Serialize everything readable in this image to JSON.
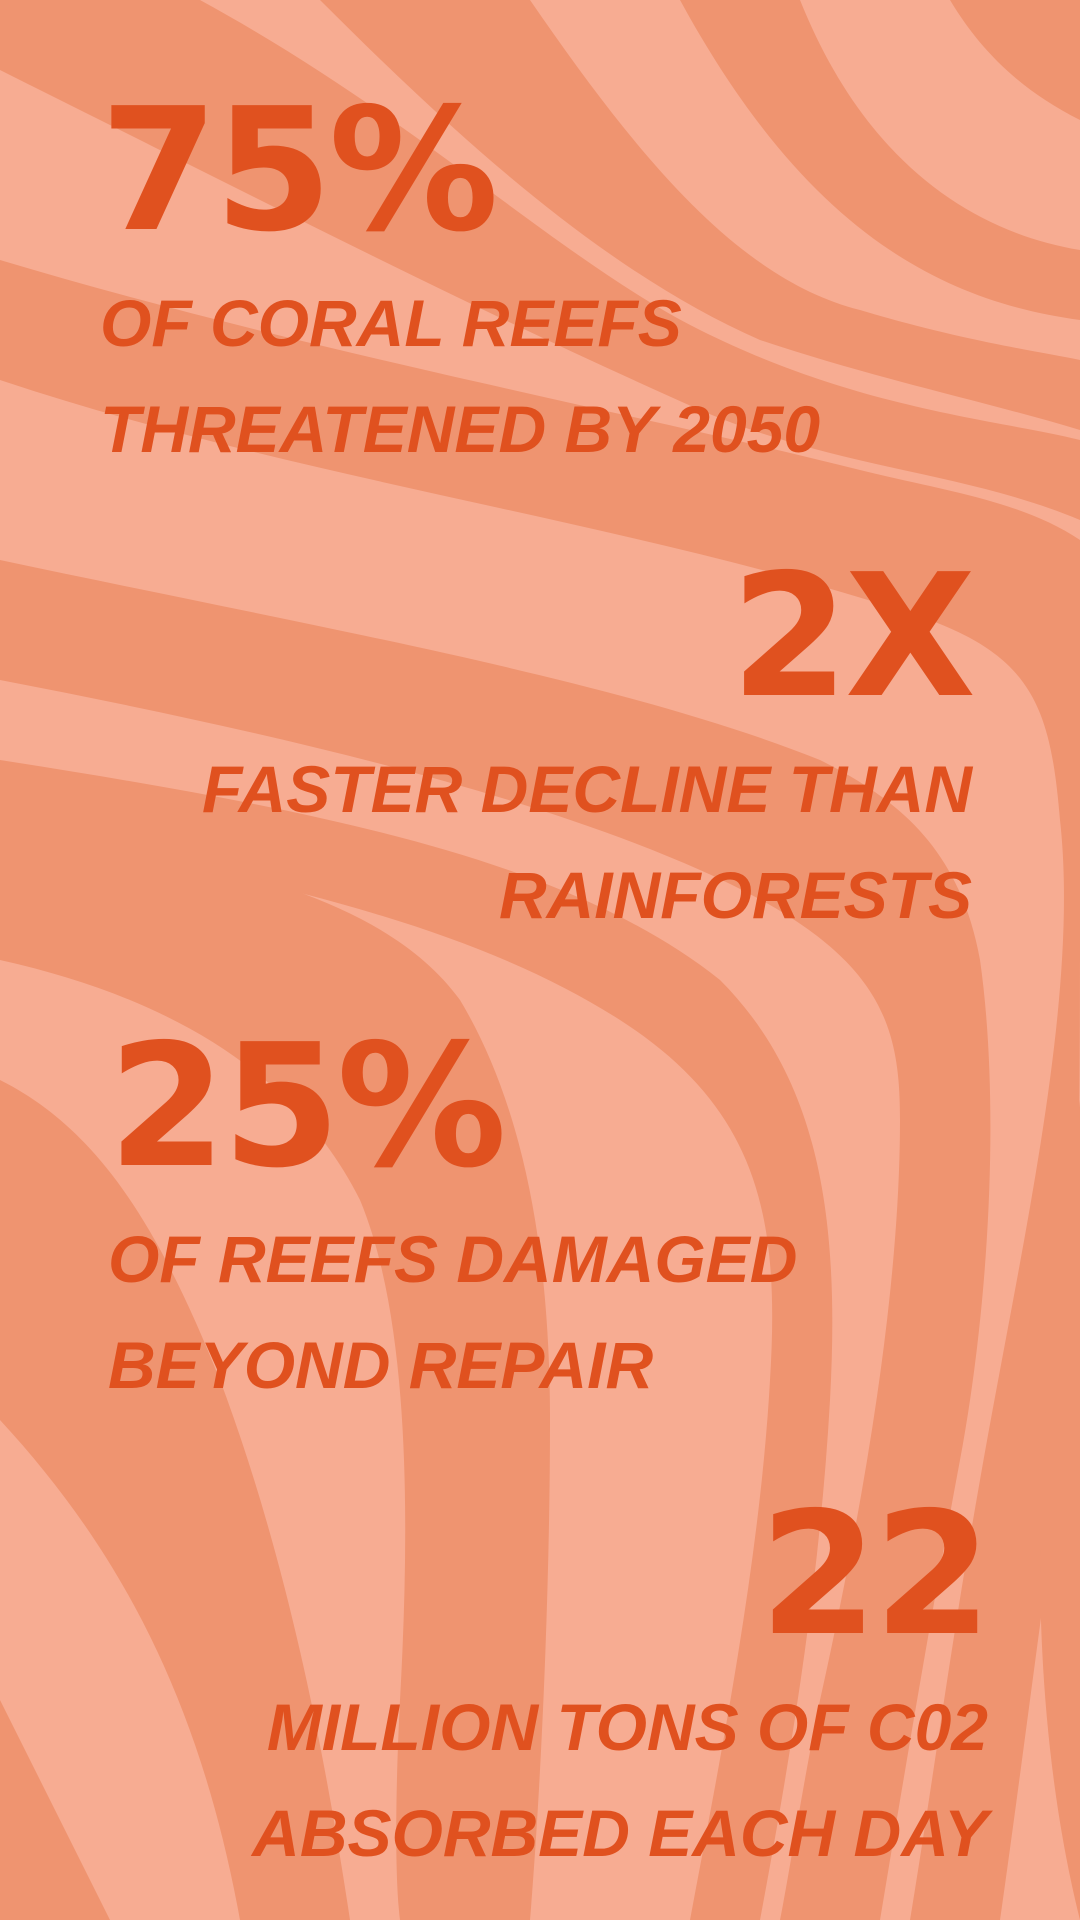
{
  "theme": {
    "background": "#F7AC92",
    "stripe": "#EF9470",
    "text": "#E0511F"
  },
  "stats": [
    {
      "value": "75%",
      "caption_lines": [
        "OF CORAL REEFS",
        "THREATENED BY 2050"
      ]
    },
    {
      "value": "2X",
      "caption_lines": [
        "FASTER DECLINE THAN",
        "RAINFORESTS"
      ]
    },
    {
      "value": "25%",
      "caption_lines": [
        "OF REEFS DAMAGED",
        "BEYOND REPAIR"
      ]
    },
    {
      "value": "22",
      "caption_lines": [
        "MILLION TONS OF C02",
        "ABSORBED EACH DAY"
      ]
    }
  ]
}
